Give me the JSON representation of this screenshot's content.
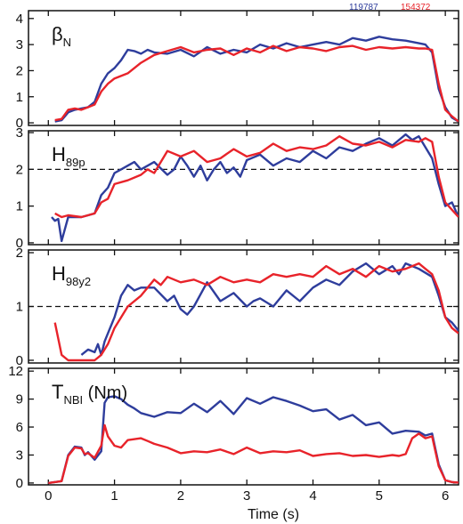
{
  "chart_data": {
    "type": "line",
    "legend": {
      "placement": "top-right",
      "entries": [
        "119787",
        "154372"
      ]
    },
    "colors": {
      "119787": "#2e3d9c",
      "154372": "#e8232a",
      "axis": "#111111"
    },
    "xlabel": "Time (s)",
    "xlim": [
      -0.3,
      6.2
    ],
    "xticks": [
      "0",
      "1",
      "2",
      "3",
      "4",
      "5",
      "6"
    ],
    "panels": [
      {
        "label_main": "β",
        "label_sub": "N",
        "ylim": [
          -0.1,
          4.3
        ],
        "yticks": [
          "0",
          "1",
          "2",
          "3",
          "4"
        ],
        "dashed": null,
        "series": [
          {
            "name": "119787",
            "x": [
              0.1,
              0.2,
              0.3,
              0.4,
              0.5,
              0.6,
              0.7,
              0.8,
              0.9,
              1.0,
              1.1,
              1.2,
              1.3,
              1.4,
              1.5,
              1.6,
              1.8,
              2.0,
              2.2,
              2.4,
              2.6,
              2.8,
              3.0,
              3.2,
              3.4,
              3.6,
              3.8,
              4.0,
              4.2,
              4.4,
              4.6,
              4.8,
              5.0,
              5.2,
              5.4,
              5.6,
              5.7,
              5.8,
              5.9,
              6.0,
              6.1,
              6.2
            ],
            "y": [
              0.05,
              0.1,
              0.4,
              0.5,
              0.55,
              0.6,
              0.8,
              1.5,
              1.9,
              2.1,
              2.4,
              2.8,
              2.75,
              2.65,
              2.8,
              2.7,
              2.65,
              2.8,
              2.55,
              2.9,
              2.65,
              2.8,
              2.7,
              3.0,
              2.85,
              3.05,
              2.9,
              3.0,
              3.1,
              3.0,
              3.25,
              3.15,
              3.3,
              3.2,
              3.15,
              3.05,
              3.0,
              2.7,
              1.3,
              0.6,
              0.2,
              0.05
            ]
          },
          {
            "name": "154372",
            "x": [
              0.1,
              0.2,
              0.3,
              0.4,
              0.5,
              0.6,
              0.7,
              0.8,
              0.9,
              1.0,
              1.2,
              1.4,
              1.6,
              1.8,
              2.0,
              2.2,
              2.4,
              2.6,
              2.8,
              3.0,
              3.2,
              3.4,
              3.6,
              3.8,
              4.0,
              4.2,
              4.4,
              4.6,
              4.8,
              5.0,
              5.2,
              5.4,
              5.6,
              5.7,
              5.8,
              5.9,
              6.0,
              6.1,
              6.2
            ],
            "y": [
              0.1,
              0.15,
              0.5,
              0.55,
              0.5,
              0.6,
              0.7,
              1.2,
              1.5,
              1.7,
              1.9,
              2.3,
              2.6,
              2.75,
              2.9,
              2.7,
              2.8,
              2.85,
              2.6,
              2.85,
              2.7,
              2.95,
              2.75,
              2.9,
              2.85,
              2.75,
              2.9,
              2.95,
              2.8,
              2.9,
              2.85,
              2.9,
              2.85,
              2.85,
              2.8,
              1.5,
              0.5,
              0.25,
              0.05
            ]
          }
        ]
      },
      {
        "label_main": "H",
        "label_sub": "89p",
        "ylim": [
          -0.05,
          3.05
        ],
        "yticks": [
          "0",
          "1",
          "2",
          "3"
        ],
        "dashed": 2,
        "series": [
          {
            "name": "119787",
            "x": [
              0.05,
              0.1,
              0.15,
              0.2,
              0.3,
              0.5,
              0.6,
              0.7,
              0.8,
              0.9,
              1.0,
              1.1,
              1.2,
              1.3,
              1.4,
              1.6,
              1.8,
              1.9,
              2.0,
              2.1,
              2.2,
              2.3,
              2.4,
              2.5,
              2.6,
              2.7,
              2.8,
              2.9,
              3.0,
              3.2,
              3.4,
              3.6,
              3.8,
              4.0,
              4.2,
              4.4,
              4.6,
              4.8,
              5.0,
              5.2,
              5.4,
              5.5,
              5.6,
              5.8,
              5.9,
              6.0,
              6.1,
              6.2
            ],
            "y": [
              0.7,
              0.6,
              0.65,
              0.05,
              0.7,
              0.7,
              0.75,
              0.8,
              1.3,
              1.5,
              1.9,
              2.0,
              2.1,
              2.2,
              2.0,
              2.2,
              1.85,
              2.0,
              2.35,
              2.1,
              1.8,
              2.1,
              1.7,
              2.0,
              2.2,
              1.9,
              2.05,
              1.8,
              2.25,
              2.4,
              2.1,
              2.3,
              2.2,
              2.5,
              2.3,
              2.6,
              2.5,
              2.7,
              2.85,
              2.65,
              2.95,
              2.8,
              2.9,
              2.3,
              1.6,
              1.0,
              1.1,
              0.7
            ]
          },
          {
            "name": "154372",
            "x": [
              0.1,
              0.2,
              0.3,
              0.5,
              0.7,
              0.8,
              0.9,
              1.0,
              1.2,
              1.4,
              1.5,
              1.6,
              1.7,
              1.8,
              2.0,
              2.2,
              2.4,
              2.6,
              2.8,
              3.0,
              3.2,
              3.4,
              3.6,
              3.8,
              4.0,
              4.2,
              4.4,
              4.6,
              4.8,
              5.0,
              5.2,
              5.4,
              5.6,
              5.7,
              5.8,
              5.9,
              6.0,
              6.1,
              6.2
            ],
            "y": [
              0.8,
              0.7,
              0.75,
              0.7,
              0.8,
              1.1,
              1.2,
              1.6,
              1.7,
              1.85,
              2.0,
              1.9,
              2.2,
              2.5,
              2.35,
              2.5,
              2.2,
              2.3,
              2.55,
              2.35,
              2.45,
              2.7,
              2.5,
              2.6,
              2.55,
              2.65,
              2.9,
              2.7,
              2.65,
              2.75,
              2.6,
              2.8,
              2.75,
              2.85,
              2.75,
              1.8,
              1.1,
              0.9,
              0.7
            ]
          }
        ]
      },
      {
        "label_main": "H",
        "label_sub": "98y2",
        "ylim": [
          -0.05,
          2.05
        ],
        "yticks": [
          "0",
          "1",
          "2"
        ],
        "dashed": 1,
        "series": [
          {
            "name": "119787",
            "x": [
              0.5,
              0.6,
              0.7,
              0.75,
              0.8,
              0.85,
              0.9,
              1.0,
              1.1,
              1.2,
              1.3,
              1.4,
              1.6,
              1.8,
              1.9,
              2.0,
              2.1,
              2.2,
              2.4,
              2.6,
              2.8,
              3.0,
              3.1,
              3.2,
              3.4,
              3.6,
              3.8,
              4.0,
              4.2,
              4.4,
              4.6,
              4.8,
              5.0,
              5.2,
              5.3,
              5.4,
              5.5,
              5.6,
              5.8,
              5.9,
              6.0,
              6.1,
              6.2
            ],
            "y": [
              0.1,
              0.2,
              0.15,
              0.3,
              0.1,
              0.35,
              0.5,
              0.8,
              1.2,
              1.4,
              1.3,
              1.35,
              1.35,
              1.1,
              1.2,
              0.95,
              0.85,
              1.0,
              1.45,
              1.1,
              1.25,
              1.0,
              1.1,
              1.15,
              1.0,
              1.3,
              1.1,
              1.35,
              1.5,
              1.4,
              1.65,
              1.8,
              1.6,
              1.75,
              1.6,
              1.8,
              1.75,
              1.7,
              1.55,
              1.2,
              0.8,
              0.7,
              0.55
            ]
          },
          {
            "name": "154372",
            "x": [
              0.1,
              0.2,
              0.3,
              0.4,
              0.5,
              0.6,
              0.7,
              0.8,
              0.9,
              1.0,
              1.2,
              1.4,
              1.6,
              1.7,
              1.8,
              2.0,
              2.2,
              2.4,
              2.6,
              2.8,
              3.0,
              3.2,
              3.4,
              3.6,
              3.8,
              4.0,
              4.2,
              4.4,
              4.6,
              4.8,
              5.0,
              5.2,
              5.4,
              5.6,
              5.7,
              5.8,
              5.9,
              6.0,
              6.1,
              6.2
            ],
            "y": [
              0.7,
              0.1,
              0.0,
              0.0,
              0.0,
              0.0,
              0.0,
              0.1,
              0.3,
              0.6,
              1.0,
              1.2,
              1.5,
              1.4,
              1.55,
              1.45,
              1.5,
              1.4,
              1.55,
              1.45,
              1.5,
              1.45,
              1.6,
              1.55,
              1.6,
              1.55,
              1.75,
              1.6,
              1.7,
              1.55,
              1.75,
              1.65,
              1.7,
              1.8,
              1.7,
              1.6,
              1.3,
              0.8,
              0.6,
              0.5
            ]
          }
        ]
      },
      {
        "label_main": "T",
        "label_sub": "NBI",
        "label_suffix": " (Nm)",
        "ylim": [
          -0.2,
          12.3
        ],
        "yticks": [
          "0",
          "3",
          "6",
          "9",
          "12"
        ],
        "dashed": null,
        "series": [
          {
            "name": "119787",
            "x": [
              0.0,
              0.2,
              0.3,
              0.4,
              0.5,
              0.55,
              0.6,
              0.7,
              0.8,
              0.85,
              0.9,
              1.0,
              1.1,
              1.2,
              1.3,
              1.4,
              1.6,
              1.8,
              2.0,
              2.2,
              2.4,
              2.6,
              2.8,
              3.0,
              3.2,
              3.4,
              3.6,
              3.8,
              4.0,
              4.2,
              4.4,
              4.6,
              4.8,
              5.0,
              5.2,
              5.4,
              5.6,
              5.7,
              5.8,
              5.9,
              6.0,
              6.1,
              6.2
            ],
            "y": [
              0.0,
              0.2,
              3.0,
              3.9,
              3.8,
              3.0,
              3.3,
              2.5,
              3.4,
              8.6,
              9.2,
              9.3,
              9.0,
              8.4,
              8.0,
              7.5,
              7.1,
              7.6,
              7.5,
              8.5,
              7.6,
              8.8,
              7.4,
              9.1,
              8.5,
              9.2,
              8.8,
              8.3,
              7.7,
              7.9,
              6.8,
              7.3,
              6.2,
              6.5,
              5.3,
              5.6,
              5.5,
              5.1,
              5.3,
              2.0,
              0.3,
              0.1,
              0.05
            ]
          },
          {
            "name": "154372",
            "x": [
              0.0,
              0.2,
              0.3,
              0.4,
              0.5,
              0.55,
              0.6,
              0.7,
              0.8,
              0.85,
              0.9,
              1.0,
              1.1,
              1.2,
              1.4,
              1.5,
              1.6,
              1.8,
              2.0,
              2.2,
              2.4,
              2.6,
              2.8,
              3.0,
              3.2,
              3.4,
              3.6,
              3.8,
              4.0,
              4.2,
              4.4,
              4.6,
              4.8,
              5.0,
              5.2,
              5.3,
              5.4,
              5.5,
              5.6,
              5.7,
              5.8,
              5.9,
              6.0,
              6.1,
              6.2
            ],
            "y": [
              0.0,
              0.2,
              2.9,
              3.8,
              3.7,
              3.1,
              3.2,
              2.7,
              4.0,
              6.2,
              5.0,
              4.0,
              3.8,
              4.6,
              4.8,
              4.5,
              4.2,
              3.8,
              3.2,
              3.4,
              3.3,
              3.6,
              3.1,
              3.8,
              3.2,
              3.4,
              3.3,
              3.5,
              2.9,
              3.1,
              3.2,
              2.9,
              3.0,
              2.8,
              3.0,
              2.9,
              3.1,
              4.8,
              5.3,
              4.8,
              5.0,
              1.8,
              0.3,
              0.1,
              0.05
            ]
          }
        ]
      }
    ]
  }
}
